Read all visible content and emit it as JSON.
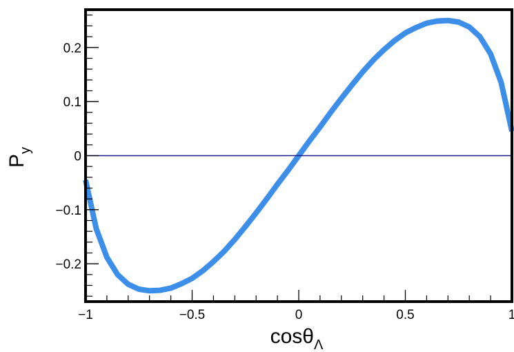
{
  "chart_data": {
    "type": "line",
    "title": "",
    "xlabel": "cosθ",
    "xlabel_subscript": "Λ",
    "ylabel": "P",
    "ylabel_subscript": "y",
    "xlim": [
      -1,
      1
    ],
    "ylim": [
      -0.27,
      0.27
    ],
    "x_ticks": [
      -1,
      -0.5,
      0,
      0.5,
      1
    ],
    "x_tick_labels": [
      "−1",
      "−0.5",
      "0",
      "0.5",
      "1"
    ],
    "y_ticks": [
      -0.2,
      -0.1,
      0,
      0.1,
      0.2
    ],
    "y_tick_labels": [
      "−0.2",
      "−0.1",
      "0",
      "0.1",
      "0.2"
    ],
    "grid": false,
    "reference_line": {
      "y": 0,
      "color": "#1f1a8a"
    },
    "series": [
      {
        "color": "#3d8ee8",
        "x": [
          -1.0,
          -0.95,
          -0.9,
          -0.85,
          -0.8,
          -0.75,
          -0.7,
          -0.65,
          -0.6,
          -0.55,
          -0.5,
          -0.45,
          -0.4,
          -0.35,
          -0.3,
          -0.25,
          -0.2,
          -0.15,
          -0.1,
          -0.05,
          0.0,
          0.05,
          0.1,
          0.15,
          0.2,
          0.25,
          0.3,
          0.35,
          0.4,
          0.45,
          0.5,
          0.55,
          0.6,
          0.65,
          0.7,
          0.75,
          0.8,
          0.85,
          0.9,
          0.95,
          1.0
        ],
        "y": [
          -0.045,
          -0.135,
          -0.188,
          -0.22,
          -0.238,
          -0.247,
          -0.25,
          -0.249,
          -0.245,
          -0.237,
          -0.227,
          -0.213,
          -0.196,
          -0.177,
          -0.155,
          -0.131,
          -0.106,
          -0.08,
          -0.053,
          -0.027,
          0.0,
          0.027,
          0.053,
          0.08,
          0.106,
          0.131,
          0.155,
          0.177,
          0.196,
          0.213,
          0.227,
          0.237,
          0.245,
          0.249,
          0.25,
          0.247,
          0.238,
          0.22,
          0.188,
          0.135,
          0.045
        ]
      }
    ]
  }
}
